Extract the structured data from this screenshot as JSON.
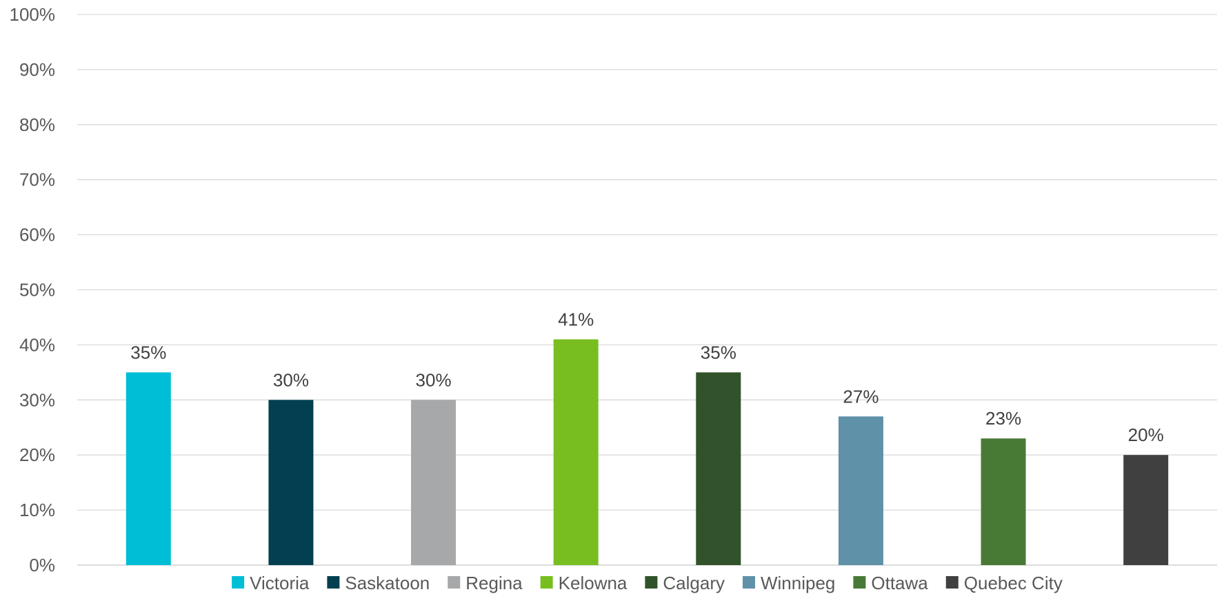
{
  "chart_data": {
    "type": "bar",
    "title": "",
    "xlabel": "",
    "ylabel": "",
    "ylim": [
      0,
      100
    ],
    "yticks": [
      0,
      10,
      20,
      30,
      40,
      50,
      60,
      70,
      80,
      90,
      100
    ],
    "ytick_labels": [
      "0%",
      "10%",
      "20%",
      "30%",
      "40%",
      "50%",
      "60%",
      "70%",
      "80%",
      "90%",
      "100%"
    ],
    "categories": [
      "Victoria",
      "Saskatoon",
      "Regina",
      "Kelowna",
      "Calgary",
      "Winnipeg",
      "Ottawa",
      "Quebec City"
    ],
    "values": [
      35,
      30,
      30,
      41,
      35,
      27,
      23,
      20
    ],
    "data_labels": [
      "35%",
      "30%",
      "30%",
      "41%",
      "35%",
      "27%",
      "23%",
      "20%"
    ],
    "colors": [
      "#00BED6",
      "#023F50",
      "#A7A8AA",
      "#78BE20",
      "#31522A",
      "#5F91A8",
      "#487A36",
      "#404040"
    ],
    "grid": true,
    "legend_position": "bottom",
    "legend": [
      "Victoria",
      "Saskatoon",
      "Regina",
      "Kelowna",
      "Calgary",
      "Winnipeg",
      "Ottawa",
      "Quebec City"
    ]
  }
}
